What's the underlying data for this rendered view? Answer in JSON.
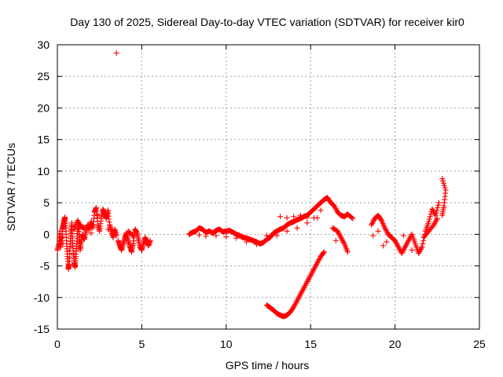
{
  "chart_data": {
    "type": "scatter",
    "title": "Day 130 of 2025, Sidereal Day-to-day VTEC variation (SDTVAR) for receiver kir0",
    "xlabel": "GPS time / hours",
    "ylabel": "SDTVAR / TECUs",
    "xlim": [
      0,
      25
    ],
    "ylim": [
      -15,
      30
    ],
    "xticks": [
      0,
      5,
      10,
      15,
      20,
      25
    ],
    "yticks": [
      -15,
      -10,
      -5,
      0,
      5,
      10,
      15,
      20,
      25,
      30
    ],
    "xtick_labels": [
      "0",
      "5",
      "10",
      "15",
      "20",
      "25"
    ],
    "ytick_labels": [
      "-15",
      "-10",
      "-5",
      "0",
      "5",
      "10",
      "15",
      "20",
      "25",
      "30"
    ],
    "grid": true,
    "marker": "+",
    "color": "#ff0000",
    "series": [
      {
        "name": "SDTVAR",
        "points": [
          [
            0.0,
            -2.5
          ],
          [
            0.1,
            -1.5
          ],
          [
            0.15,
            0.5
          ],
          [
            0.2,
            -2.0
          ],
          [
            0.25,
            -1.0
          ],
          [
            0.3,
            0.8
          ],
          [
            0.35,
            1.5
          ],
          [
            0.4,
            2.2
          ],
          [
            0.45,
            2.7
          ],
          [
            0.5,
            1.0
          ],
          [
            0.55,
            -1.5
          ],
          [
            0.6,
            -3.5
          ],
          [
            0.65,
            -5.5
          ],
          [
            0.7,
            -4.8
          ],
          [
            0.75,
            -2.0
          ],
          [
            0.8,
            0.2
          ],
          [
            0.85,
            1.8
          ],
          [
            0.9,
            -1.0
          ],
          [
            0.95,
            -3.0
          ],
          [
            1.0,
            -4.5
          ],
          [
            1.05,
            -5.2
          ],
          [
            1.1,
            -3.5
          ],
          [
            1.15,
            -1.5
          ],
          [
            1.2,
            0.5
          ],
          [
            1.25,
            1.8
          ],
          [
            1.3,
            -0.5
          ],
          [
            1.35,
            -2.5
          ],
          [
            1.4,
            -1.2
          ],
          [
            1.5,
            0.0
          ],
          [
            1.6,
            -0.8
          ],
          [
            1.7,
            0.5
          ],
          [
            1.8,
            1.5
          ],
          [
            1.9,
            0.8
          ],
          [
            2.0,
            2.0
          ],
          [
            2.1,
            1.0
          ],
          [
            2.2,
            3.5
          ],
          [
            2.3,
            4.2
          ],
          [
            2.4,
            1.5
          ],
          [
            2.5,
            0.5
          ],
          [
            2.6,
            2.5
          ],
          [
            2.7,
            4.0
          ],
          [
            2.8,
            3.2
          ],
          [
            2.9,
            2.5
          ],
          [
            3.0,
            3.8
          ],
          [
            3.1,
            1.5
          ],
          [
            3.2,
            0.5
          ],
          [
            3.3,
            -0.5
          ],
          [
            3.4,
            0.8
          ],
          [
            3.5,
            -0.2
          ],
          [
            3.5,
            28.7
          ],
          [
            3.6,
            -1.0
          ],
          [
            3.7,
            -1.8
          ],
          [
            3.8,
            -2.5
          ],
          [
            3.9,
            -1.5
          ],
          [
            4.0,
            -0.5
          ],
          [
            4.1,
            0.2
          ],
          [
            4.2,
            -1.0
          ],
          [
            4.3,
            -2.0
          ],
          [
            4.4,
            -2.8
          ],
          [
            4.5,
            -1.5
          ],
          [
            4.6,
            0.8
          ],
          [
            4.7,
            0.3
          ],
          [
            4.8,
            -0.8
          ],
          [
            4.9,
            -2.0
          ],
          [
            5.0,
            -2.5
          ],
          [
            5.1,
            -1.5
          ],
          [
            5.2,
            -0.5
          ],
          [
            5.3,
            -1.2
          ],
          [
            5.4,
            -1.8
          ],
          [
            5.5,
            -1.0
          ],
          [
            1.0,
            0.8
          ],
          [
            1.2,
            2.2
          ],
          [
            1.4,
            1.2
          ],
          [
            1.6,
            1.0
          ],
          [
            2.4,
            3.0
          ],
          [
            2.0,
            0.2
          ],
          [
            0.3,
            -0.5
          ],
          [
            4.2,
            0.5
          ],
          [
            4.5,
            -0.3
          ],
          [
            3.0,
            0.8
          ],
          [
            7.8,
            0.0
          ],
          [
            8.0,
            0.3
          ],
          [
            8.2,
            0.5
          ],
          [
            8.4,
            1.0
          ],
          [
            8.6,
            0.8
          ],
          [
            8.8,
            0.3
          ],
          [
            9.0,
            0.5
          ],
          [
            9.2,
            0.2
          ],
          [
            9.4,
            0.6
          ],
          [
            9.6,
            0.8
          ],
          [
            9.8,
            0.4
          ],
          [
            10.0,
            0.5
          ],
          [
            10.2,
            0.6
          ],
          [
            10.4,
            0.3
          ],
          [
            10.6,
            0.0
          ],
          [
            10.8,
            -0.2
          ],
          [
            11.0,
            -0.5
          ],
          [
            11.2,
            -0.6
          ],
          [
            11.4,
            -0.8
          ],
          [
            11.6,
            -1.0
          ],
          [
            11.8,
            -1.2
          ],
          [
            12.0,
            -1.5
          ],
          [
            12.2,
            -1.3
          ],
          [
            12.4,
            -0.8
          ],
          [
            12.6,
            -0.5
          ],
          [
            12.8,
            0.2
          ],
          [
            13.0,
            0.5
          ],
          [
            13.2,
            0.8
          ],
          [
            13.4,
            1.0
          ],
          [
            13.6,
            1.5
          ],
          [
            13.8,
            1.8
          ],
          [
            14.0,
            2.0
          ],
          [
            14.2,
            2.3
          ],
          [
            14.4,
            2.5
          ],
          [
            14.6,
            2.8
          ],
          [
            14.8,
            3.0
          ],
          [
            15.0,
            3.5
          ],
          [
            15.2,
            4.0
          ],
          [
            15.4,
            4.5
          ],
          [
            15.6,
            5.0
          ],
          [
            15.8,
            5.5
          ],
          [
            16.0,
            5.8
          ],
          [
            16.2,
            5.0
          ],
          [
            16.4,
            4.5
          ],
          [
            16.6,
            3.5
          ],
          [
            16.8,
            3.0
          ],
          [
            17.0,
            2.8
          ],
          [
            17.2,
            3.2
          ],
          [
            17.5,
            2.5
          ],
          [
            8.4,
            -0.1
          ],
          [
            8.8,
            -0.3
          ],
          [
            9.4,
            -0.2
          ],
          [
            10.0,
            -0.4
          ],
          [
            10.6,
            -0.6
          ],
          [
            11.2,
            -1.2
          ],
          [
            11.8,
            -1.6
          ],
          [
            12.4,
            -0.2
          ],
          [
            13.0,
            -0.2
          ],
          [
            13.6,
            0.5
          ],
          [
            14.2,
            1.0
          ],
          [
            14.8,
            1.8
          ],
          [
            15.4,
            2.6
          ],
          [
            13.2,
            2.8
          ],
          [
            13.6,
            2.6
          ],
          [
            14.0,
            2.8
          ],
          [
            14.4,
            3.0
          ],
          [
            14.8,
            2.7
          ],
          [
            15.2,
            2.6
          ],
          [
            15.6,
            3.8
          ],
          [
            16.3,
            1.0
          ],
          [
            16.6,
            0.5
          ],
          [
            16.8,
            -0.5
          ],
          [
            17.0,
            -1.5
          ],
          [
            17.2,
            -2.8
          ],
          [
            16.5,
            -1.0
          ],
          [
            12.4,
            -11.2
          ],
          [
            12.6,
            -11.6
          ],
          [
            12.8,
            -12.0
          ],
          [
            13.0,
            -12.5
          ],
          [
            13.2,
            -12.8
          ],
          [
            13.4,
            -13.0
          ],
          [
            13.6,
            -12.8
          ],
          [
            13.8,
            -12.3
          ],
          [
            14.0,
            -11.5
          ],
          [
            14.2,
            -10.5
          ],
          [
            14.4,
            -9.5
          ],
          [
            14.6,
            -8.5
          ],
          [
            14.8,
            -7.5
          ],
          [
            15.0,
            -6.5
          ],
          [
            15.2,
            -5.5
          ],
          [
            15.4,
            -4.5
          ],
          [
            15.6,
            -3.5
          ],
          [
            15.8,
            -2.8
          ],
          [
            18.6,
            1.5
          ],
          [
            18.8,
            2.5
          ],
          [
            19.0,
            3.0
          ],
          [
            19.2,
            2.2
          ],
          [
            19.4,
            1.0
          ],
          [
            19.6,
            0.0
          ],
          [
            19.8,
            -0.5
          ],
          [
            20.0,
            -1.0
          ],
          [
            20.2,
            -2.0
          ],
          [
            20.4,
            -3.0
          ],
          [
            20.6,
            -2.0
          ],
          [
            20.8,
            -1.0
          ],
          [
            21.0,
            0.0
          ],
          [
            21.2,
            -1.5
          ],
          [
            21.4,
            -3.0
          ],
          [
            21.6,
            -2.0
          ],
          [
            21.8,
            0.5
          ],
          [
            22.0,
            2.0
          ],
          [
            22.2,
            4.0
          ],
          [
            22.4,
            3.0
          ],
          [
            22.6,
            5.0
          ],
          [
            22.8,
            8.8
          ],
          [
            23.0,
            7.0
          ],
          [
            22.9,
            4.5
          ],
          [
            22.8,
            3.0
          ],
          [
            19.0,
            0.5
          ],
          [
            19.5,
            -1.2
          ],
          [
            20.5,
            -0.2
          ],
          [
            21.0,
            -2.5
          ],
          [
            21.7,
            -0.5
          ],
          [
            22.0,
            0.5
          ],
          [
            22.3,
            1.5
          ],
          [
            22.5,
            2.5
          ],
          [
            18.7,
            -0.2
          ],
          [
            19.3,
            -1.8
          ]
        ]
      }
    ]
  }
}
